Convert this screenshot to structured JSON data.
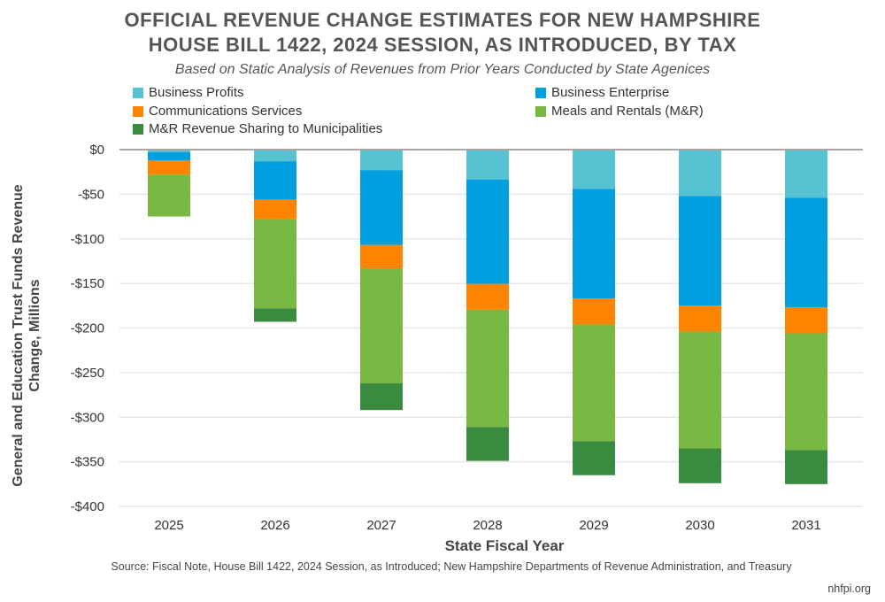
{
  "chart_data": {
    "type": "bar",
    "stacked": true,
    "title": [
      "OFFICIAL REVENUE CHANGE ESTIMATES FOR NEW HAMPSHIRE",
      "HOUSE BILL 1422, 2024 SESSION, AS INTRODUCED, BY TAX"
    ],
    "subtitle": "Based on Static Analysis of Revenues from Prior Years Conducted by State Agenices",
    "xlabel": "State Fiscal Year",
    "ylabel": "General and Education Trust Funds Revenue Change, Millions",
    "categories": [
      "2025",
      "2026",
      "2027",
      "2028",
      "2029",
      "2030",
      "2031"
    ],
    "ylim": [
      -400,
      0
    ],
    "yticks": [
      0,
      -50,
      -100,
      -150,
      -200,
      -250,
      -300,
      -350,
      -400
    ],
    "ytick_labels": [
      "$0",
      "-$50",
      "-$100",
      "-$150",
      "-$200",
      "-$250",
      "-$300",
      "-$350",
      "-$400"
    ],
    "grid": true,
    "legend_position": "top",
    "series": [
      {
        "name": "Business Profits",
        "color": "#56c2d2",
        "values": [
          -3,
          -13,
          -23,
          -33.5,
          -44,
          -52,
          -54
        ]
      },
      {
        "name": "Business Enterprise",
        "color": "#009fdf",
        "values": [
          -9,
          -43,
          -84,
          -117,
          -123,
          -123,
          -123
        ]
      },
      {
        "name": "Communications Services",
        "color": "#ff8400",
        "values": [
          -16,
          -22,
          -26,
          -29,
          -29,
          -29,
          -29
        ]
      },
      {
        "name": "Meals and Rentals (M&R)",
        "color": "#78b943",
        "values": [
          -47,
          -100,
          -129,
          -131.5,
          -131,
          -131,
          -131
        ]
      },
      {
        "name": "M&R Revenue Sharing to Municipalities",
        "color": "#3a8a3f",
        "values": [
          0,
          -15,
          -30,
          -38,
          -38,
          -39,
          -38
        ]
      }
    ]
  },
  "source": "Source: Fiscal Note, House Bill 1422, 2024 Session, as Introduced; New Hampshire Departments of Revenue Administration, and Treasury",
  "brand": "nhfpi.org"
}
